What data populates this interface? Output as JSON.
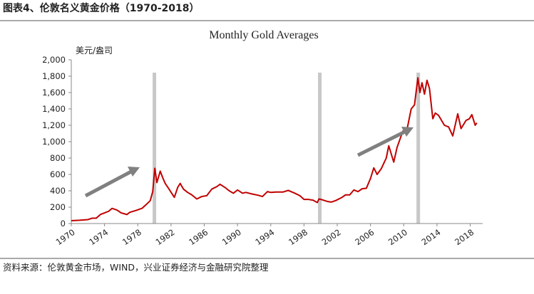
{
  "header": {
    "title": "图表4、伦敦名义黄金价格（1970-2018）"
  },
  "chart_data": {
    "type": "line",
    "title": "Monthly Gold Averages",
    "y_label": "美元/盎司",
    "color": "#c00000",
    "x": [
      1970,
      1971,
      1972,
      1972.5,
      1973,
      1973.5,
      1974,
      1974.5,
      1974.9,
      1975.5,
      1976,
      1976.7,
      1977,
      1977.8,
      1978.5,
      1979,
      1979.5,
      1979.8,
      1980.05,
      1980.3,
      1980.7,
      1981,
      1981.3,
      1981.7,
      1982.4,
      1982.8,
      1983.1,
      1983.5,
      1984,
      1984.5,
      1985.1,
      1985.7,
      1986.3,
      1986.9,
      1987.5,
      1987.9,
      1988.5,
      1989,
      1989.5,
      1990,
      1990.6,
      1991,
      1991.8,
      1992.5,
      1993,
      1993.6,
      1994,
      1994.6,
      1995.5,
      1996.1,
      1996.9,
      1997.5,
      1998,
      1998.5,
      1999.1,
      1999.6,
      1999.8,
      2000.2,
      2000.8,
      2001.3,
      2001.8,
      2002.5,
      2003,
      2003.5,
      2004,
      2004.5,
      2005,
      2005.5,
      2006,
      2006.4,
      2006.8,
      2007.3,
      2007.9,
      2008.2,
      2008.8,
      2009.2,
      2009.9,
      2010.3,
      2010.9,
      2011.3,
      2011.7,
      2011.95,
      2012.2,
      2012.5,
      2012.8,
      2013.1,
      2013.5,
      2013.8,
      2014.2,
      2014.9,
      2015.4,
      2015.9,
      2016.5,
      2016.9,
      2017.5,
      2017.9,
      2018.2,
      2018.6,
      2018.8
    ],
    "values": [
      35,
      40,
      48,
      65,
      65,
      110,
      130,
      150,
      185,
      165,
      130,
      110,
      135,
      160,
      185,
      230,
      280,
      390,
      675,
      500,
      640,
      560,
      490,
      430,
      320,
      440,
      490,
      420,
      380,
      350,
      300,
      330,
      340,
      420,
      450,
      480,
      440,
      400,
      370,
      410,
      370,
      380,
      360,
      345,
      330,
      390,
      380,
      385,
      385,
      405,
      370,
      340,
      295,
      295,
      285,
      256,
      300,
      290,
      270,
      262,
      280,
      315,
      350,
      350,
      410,
      390,
      425,
      430,
      550,
      680,
      600,
      670,
      800,
      950,
      750,
      930,
      1130,
      1100,
      1400,
      1450,
      1780,
      1600,
      1720,
      1580,
      1750,
      1650,
      1280,
      1350,
      1320,
      1200,
      1180,
      1070,
      1340,
      1160,
      1260,
      1280,
      1330,
      1200,
      1230
    ],
    "bands": [
      1980.0,
      1999.9,
      2011.75
    ],
    "band_color": "#c8c8c8",
    "xlim": [
      1970,
      2019.5
    ],
    "xticks": [
      1970,
      1974,
      1978,
      1982,
      1986,
      1990,
      1994,
      1998,
      2002,
      2006,
      2010,
      2014,
      2018
    ],
    "ylim": [
      0,
      2000
    ],
    "yticks": [
      0,
      200,
      400,
      600,
      800,
      {
        "value": 1000,
        "label": "1,000"
      },
      {
        "value": 1200,
        "label": "1,200"
      },
      {
        "value": 1400,
        "label": "1,400"
      },
      {
        "value": 1600,
        "label": "1,600"
      },
      {
        "value": 1800,
        "label": "1,800"
      },
      {
        "value": 2000,
        "label": "2,000"
      }
    ]
  },
  "footer": {
    "source": "资料来源：伦敦黄金市场，WIND，兴业证券经济与金融研究院整理"
  }
}
